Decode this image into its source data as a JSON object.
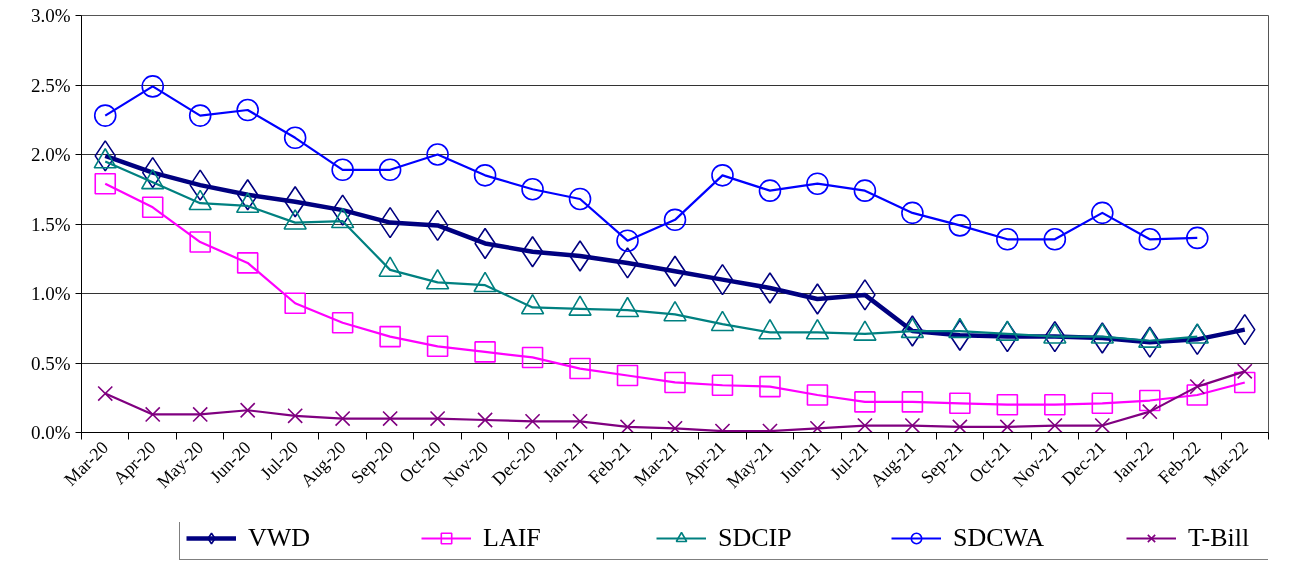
{
  "chart_data": {
    "type": "line",
    "categories": [
      "Mar-20",
      "Apr-20",
      "May-20",
      "Jun-20",
      "Jul-20",
      "Aug-20",
      "Sep-20",
      "Oct-20",
      "Nov-20",
      "Dec-20",
      "Jan-21",
      "Feb-21",
      "Mar-21",
      "Apr-21",
      "May-21",
      "Jun-21",
      "Jul-21",
      "Aug-21",
      "Sep-21",
      "Oct-21",
      "Nov-21",
      "Dec-21",
      "Jan-22",
      "Feb-22",
      "Mar-22"
    ],
    "ylim": [
      0,
      3
    ],
    "yticks": [
      {
        "value": 0,
        "label": "0.0%"
      },
      {
        "value": 0.5,
        "label": "0.5%"
      },
      {
        "value": 1,
        "label": "1.0%"
      },
      {
        "value": 1.5,
        "label": "1.5%"
      },
      {
        "value": 2,
        "label": "2.0%"
      },
      {
        "value": 2.5,
        "label": "2.5%"
      },
      {
        "value": 3,
        "label": "3.0%"
      }
    ],
    "grid": "y",
    "legend": "bottom",
    "series": [
      {
        "name": "VWD",
        "color": "#000080",
        "marker": "diamond",
        "values": [
          1.99,
          1.87,
          1.78,
          1.71,
          1.66,
          1.6,
          1.51,
          1.49,
          1.36,
          1.3,
          1.27,
          1.22,
          1.16,
          1.1,
          1.04,
          0.96,
          0.99,
          0.73,
          0.7,
          0.69,
          0.69,
          0.68,
          0.65,
          0.67,
          0.74
        ]
      },
      {
        "name": "LAIF",
        "color": "#ff00ff",
        "marker": "square",
        "values": [
          1.79,
          1.62,
          1.37,
          1.22,
          0.93,
          0.79,
          0.69,
          0.62,
          0.58,
          0.54,
          0.46,
          0.41,
          0.36,
          0.34,
          0.33,
          0.27,
          0.22,
          0.22,
          0.21,
          0.2,
          0.2,
          0.21,
          0.23,
          0.27,
          0.36
        ]
      },
      {
        "name": "SDCIP",
        "color": "#008080",
        "marker": "triangle",
        "values": [
          1.95,
          1.8,
          1.65,
          1.63,
          1.51,
          1.52,
          1.17,
          1.08,
          1.06,
          0.9,
          0.89,
          0.88,
          0.85,
          0.78,
          0.72,
          0.72,
          0.71,
          0.73,
          0.73,
          0.71,
          0.69,
          0.69,
          0.66,
          0.69,
          null
        ]
      },
      {
        "name": "SDCWA",
        "color": "#0000ff",
        "marker": "circle",
        "values": [
          2.28,
          2.49,
          2.28,
          2.32,
          2.12,
          1.89,
          1.89,
          2.0,
          1.85,
          1.75,
          1.68,
          1.38,
          1.53,
          1.85,
          1.74,
          1.79,
          1.74,
          1.58,
          1.49,
          1.39,
          1.39,
          1.58,
          1.39,
          1.4,
          null
        ]
      },
      {
        "name": "T-Bill",
        "color": "#800080",
        "marker": "cross",
        "values": [
          0.28,
          0.13,
          0.13,
          0.16,
          0.12,
          0.1,
          0.1,
          0.1,
          0.09,
          0.08,
          0.08,
          0.04,
          0.03,
          0.01,
          0.01,
          0.03,
          0.05,
          0.05,
          0.04,
          0.04,
          0.05,
          0.05,
          0.15,
          0.33,
          0.44
        ]
      }
    ]
  }
}
